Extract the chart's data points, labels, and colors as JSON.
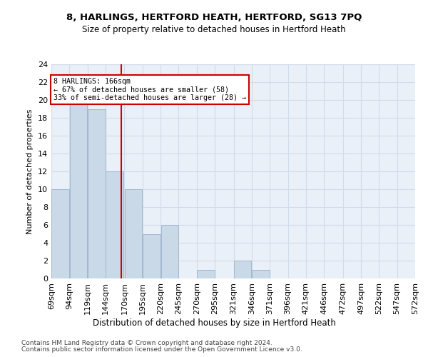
{
  "title1": "8, HARLINGS, HERTFORD HEATH, HERTFORD, SG13 7PQ",
  "title2": "Size of property relative to detached houses in Hertford Heath",
  "xlabel": "Distribution of detached houses by size in Hertford Heath",
  "ylabel": "Number of detached properties",
  "bar_edges": [
    69,
    94,
    119,
    144,
    170,
    195,
    220,
    245,
    270,
    295,
    321,
    346,
    371,
    396,
    421,
    446,
    472,
    497,
    522,
    547,
    572
  ],
  "bar_values": [
    10,
    20,
    19,
    12,
    10,
    5,
    6,
    0,
    1,
    0,
    2,
    1,
    0,
    0,
    0,
    0,
    0,
    0,
    0,
    0
  ],
  "bar_color": "#c9d9e8",
  "bar_edgecolor": "#a0b8d0",
  "property_size": 166,
  "vline_color": "#cc0000",
  "annotation_text": "8 HARLINGS: 166sqm\n← 67% of detached houses are smaller (58)\n33% of semi-detached houses are larger (28) →",
  "annotation_box_edgecolor": "#cc0000",
  "ylim": [
    0,
    24
  ],
  "yticks": [
    0,
    2,
    4,
    6,
    8,
    10,
    12,
    14,
    16,
    18,
    20,
    22,
    24
  ],
  "tick_labels": [
    "69sqm",
    "94sqm",
    "119sqm",
    "144sqm",
    "170sqm",
    "195sqm",
    "220sqm",
    "245sqm",
    "270sqm",
    "295sqm",
    "321sqm",
    "346sqm",
    "371sqm",
    "396sqm",
    "421sqm",
    "446sqm",
    "472sqm",
    "497sqm",
    "522sqm",
    "547sqm",
    "572sqm"
  ],
  "grid_color": "#d0dce8",
  "bg_color": "#eaf0f8",
  "footer1": "Contains HM Land Registry data © Crown copyright and database right 2024.",
  "footer2": "Contains public sector information licensed under the Open Government Licence v3.0."
}
